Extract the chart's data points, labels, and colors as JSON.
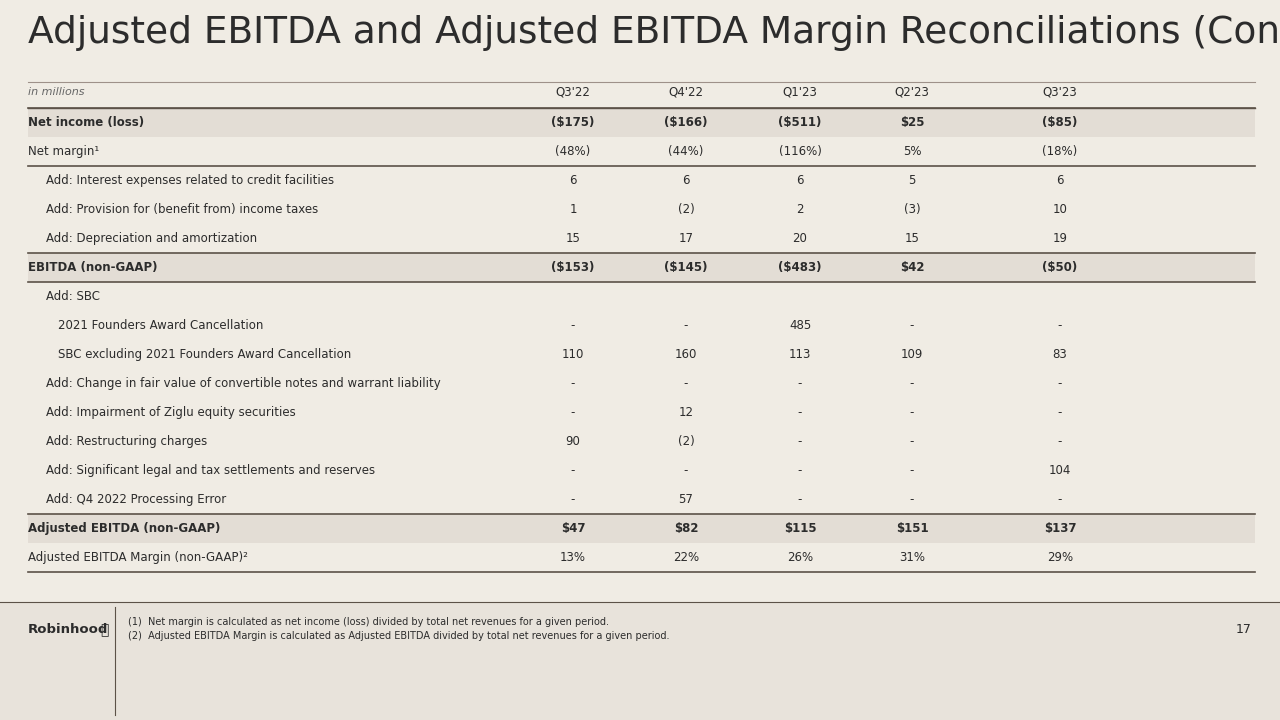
{
  "title": "Adjusted EBITDA and Adjusted EBITDA Margin Reconciliations (Continued)",
  "page_number": "17",
  "background_color": "#f0ece4",
  "columns": [
    "in millions",
    "Q3'22",
    "Q4'22",
    "Q1'23",
    "Q2'23",
    "Q3'23"
  ],
  "rows": [
    {
      "label": "Net income (loss)",
      "bold": true,
      "values": [
        "($175)",
        "($166)",
        "($511)",
        "$25",
        "($85)"
      ],
      "bold_bg": true,
      "border_top": true,
      "border_bottom": false
    },
    {
      "label": "Net margin¹",
      "bold": false,
      "values": [
        "(48%)",
        "(44%)",
        "(116%)",
        "5%",
        "(18%)"
      ],
      "bold_bg": false,
      "border_top": false,
      "border_bottom": true
    },
    {
      "label": "Add: Interest expenses related to credit facilities",
      "bold": false,
      "values": [
        "6",
        "6",
        "6",
        "5",
        "6"
      ],
      "bold_bg": false,
      "indent": 1,
      "border_top": false,
      "border_bottom": false
    },
    {
      "label": "Add: Provision for (benefit from) income taxes",
      "bold": false,
      "values": [
        "1",
        "(2)",
        "2",
        "(3)",
        "10"
      ],
      "bold_bg": false,
      "indent": 1,
      "border_top": false,
      "border_bottom": false
    },
    {
      "label": "Add: Depreciation and amortization",
      "bold": false,
      "values": [
        "15",
        "17",
        "20",
        "15",
        "19"
      ],
      "bold_bg": false,
      "indent": 1,
      "border_top": false,
      "border_bottom": false
    },
    {
      "label": "EBITDA (non-GAAP)",
      "bold": true,
      "values": [
        "($153)",
        "($145)",
        "($483)",
        "$42",
        "($50)"
      ],
      "bold_bg": true,
      "border_top": true,
      "border_bottom": true
    },
    {
      "label": "Add: SBC",
      "bold": false,
      "values": [
        "",
        "",
        "",
        "",
        ""
      ],
      "bold_bg": false,
      "indent": 1,
      "border_top": false,
      "border_bottom": false
    },
    {
      "label": "2021 Founders Award Cancellation",
      "bold": false,
      "values": [
        "-",
        "-",
        "485",
        "-",
        "-"
      ],
      "bold_bg": false,
      "indent": 2,
      "border_top": false,
      "border_bottom": false
    },
    {
      "label": "SBC excluding 2021 Founders Award Cancellation",
      "bold": false,
      "values": [
        "110",
        "160",
        "113",
        "109",
        "83"
      ],
      "bold_bg": false,
      "indent": 2,
      "border_top": false,
      "border_bottom": false
    },
    {
      "label": "Add: Change in fair value of convertible notes and warrant liability",
      "bold": false,
      "values": [
        "-",
        "-",
        "-",
        "-",
        "-"
      ],
      "bold_bg": false,
      "indent": 1,
      "border_top": false,
      "border_bottom": false
    },
    {
      "label": "Add: Impairment of Ziglu equity securities",
      "bold": false,
      "values": [
        "-",
        "12",
        "-",
        "-",
        "-"
      ],
      "bold_bg": false,
      "indent": 1,
      "border_top": false,
      "border_bottom": false
    },
    {
      "label": "Add: Restructuring charges",
      "bold": false,
      "values": [
        "90",
        "(2)",
        "-",
        "-",
        "-"
      ],
      "bold_bg": false,
      "indent": 1,
      "border_top": false,
      "border_bottom": false
    },
    {
      "label": "Add: Significant legal and tax settlements and reserves",
      "bold": false,
      "values": [
        "-",
        "-",
        "-",
        "-",
        "104"
      ],
      "bold_bg": false,
      "indent": 1,
      "border_top": false,
      "border_bottom": false
    },
    {
      "label": "Add: Q4 2022 Processing Error",
      "bold": false,
      "values": [
        "-",
        "57",
        "-",
        "-",
        "-"
      ],
      "bold_bg": false,
      "indent": 1,
      "border_top": false,
      "border_bottom": false
    },
    {
      "label": "Adjusted EBITDA (non-GAAP)",
      "bold": true,
      "values": [
        "$47",
        "$82",
        "$115",
        "$151",
        "$137"
      ],
      "bold_bg": true,
      "border_top": true,
      "border_bottom": false
    },
    {
      "label": "Adjusted EBITDA Margin (non-GAAP)²",
      "bold": false,
      "values": [
        "13%",
        "22%",
        "26%",
        "31%",
        "29%"
      ],
      "bold_bg": false,
      "border_top": false,
      "border_bottom": true
    }
  ],
  "footer_notes": [
    "(1)  Net margin is calculated as net income (loss) divided by total net revenues for a given period.",
    "(2)  Adjusted EBITDA Margin is calculated as Adjusted EBITDA divided by total net revenues for a given period."
  ],
  "robinhood_logo_text": "Robinhood",
  "title_color": "#2c2c2c",
  "text_color": "#2c2c2c",
  "bold_row_bg": "#e3ddd5",
  "normal_row_bg": "#f0ece4",
  "separator_color": "#7a6e62",
  "footer_bg": "#e8e3db",
  "title_line_color": "#9e9189",
  "border_color": "#5c5248"
}
